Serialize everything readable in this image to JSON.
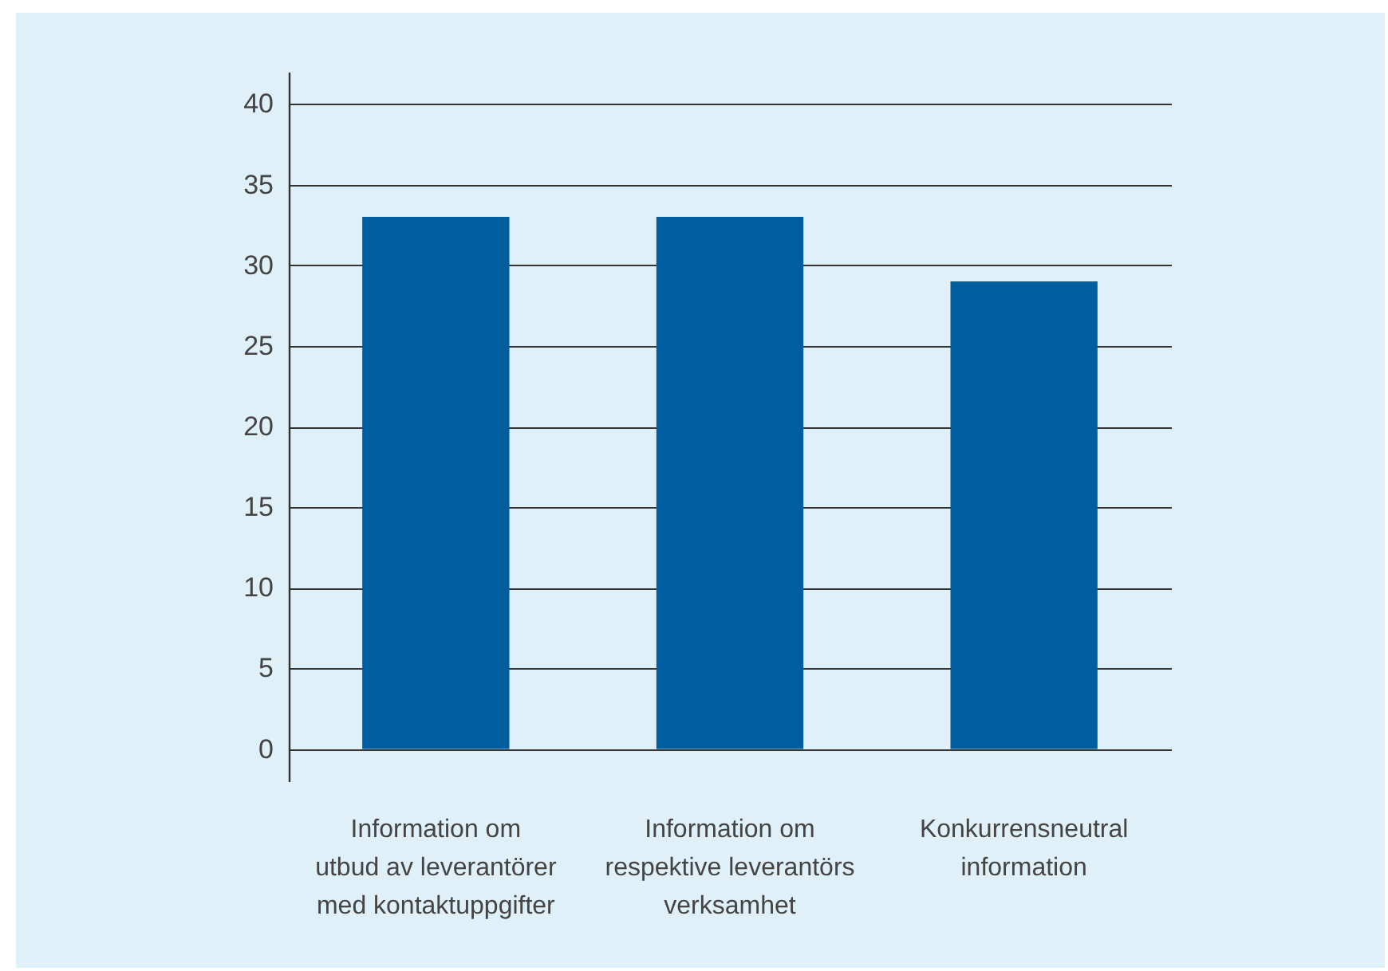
{
  "chart_data": {
    "type": "bar",
    "categories": [
      "Information om\nutbud av leverantörer\nmed kontaktuppgifter",
      "Information om\nrespektive leverantörs\nverksamhet",
      "Konkurrensneutral\ninformation"
    ],
    "values": [
      33,
      33,
      29
    ],
    "color": "#005e9e",
    "ylim": [
      -2,
      42
    ],
    "yticks": [
      0,
      5,
      10,
      15,
      20,
      25,
      30,
      35,
      40
    ],
    "grid": "y"
  }
}
